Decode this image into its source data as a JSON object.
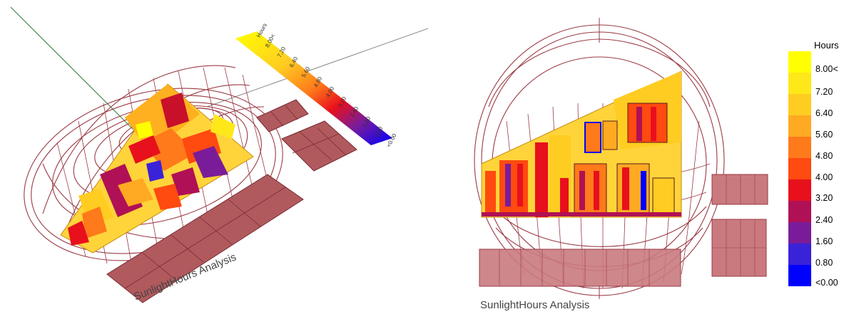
{
  "caption_left": "SunlightHours Analysis",
  "caption_right": "SunlightHours Analysis",
  "legend": {
    "title": "Hours",
    "ticks": [
      "8.00<",
      "7.20",
      "6.40",
      "5.60",
      "4.80",
      "4.00",
      "3.20",
      "2.40",
      "1.60",
      "0.80",
      "<0.00"
    ],
    "colors": [
      "#ffff00",
      "#ffe81a",
      "#ffcc22",
      "#ffaa22",
      "#ff7a1a",
      "#ff4a10",
      "#e8101c",
      "#b01055",
      "#7a1c9a",
      "#3a22d8",
      "#0000ff"
    ]
  },
  "legend_left": {
    "title": "Hours",
    "ticks": [
      "8.00<",
      "7.20",
      "6.40",
      "5.60",
      "4.80",
      "4.00",
      "3.20",
      "2.40",
      "1.60",
      "0.80",
      "<0.00"
    ]
  },
  "colors": {
    "sunpath": "#9a3a44",
    "panel": "#b05a5e",
    "panel_dark": "#7a2a30",
    "site_base": "#ffd43a"
  }
}
